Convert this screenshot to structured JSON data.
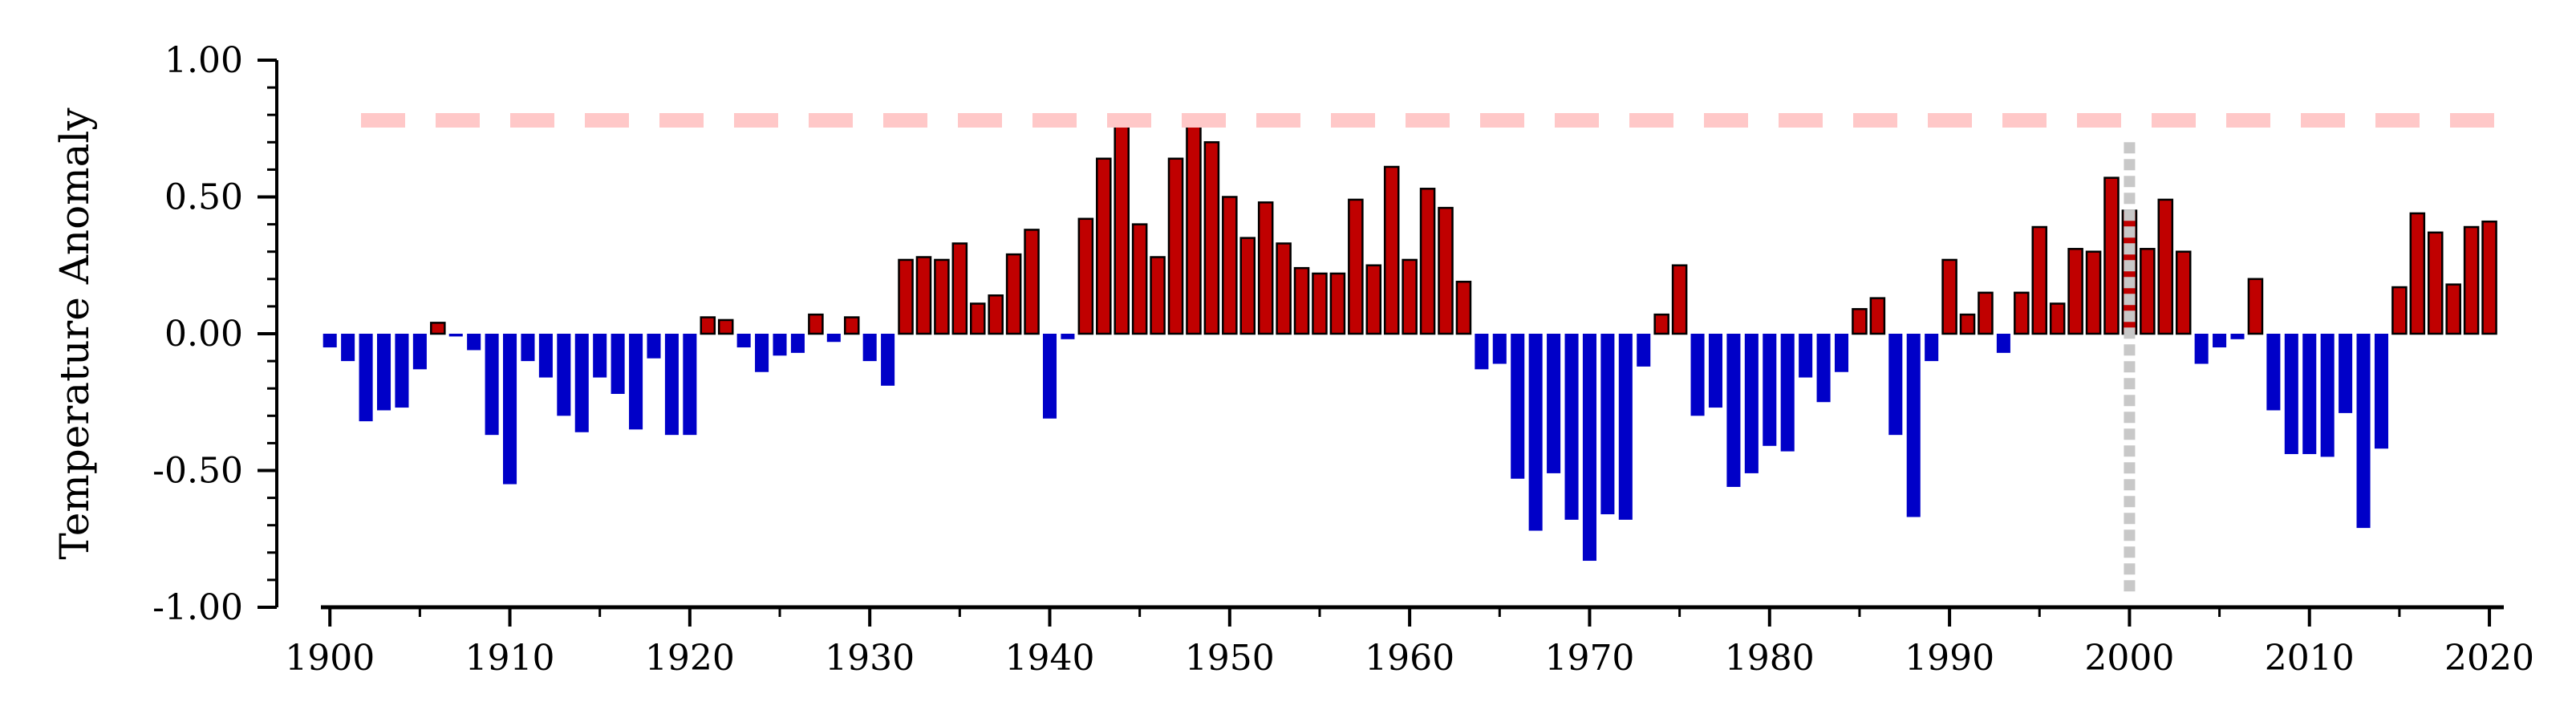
{
  "chart_data": {
    "type": "bar",
    "title": "",
    "xlabel": "",
    "ylabel": "Temperature Anomaly",
    "x": [
      1900,
      1901,
      1902,
      1903,
      1904,
      1905,
      1906,
      1907,
      1908,
      1909,
      1910,
      1911,
      1912,
      1913,
      1914,
      1915,
      1916,
      1917,
      1918,
      1919,
      1920,
      1921,
      1922,
      1923,
      1924,
      1925,
      1926,
      1927,
      1928,
      1929,
      1930,
      1931,
      1932,
      1933,
      1934,
      1935,
      1936,
      1937,
      1938,
      1939,
      1940,
      1941,
      1942,
      1943,
      1944,
      1945,
      1946,
      1947,
      1948,
      1949,
      1950,
      1951,
      1952,
      1953,
      1954,
      1955,
      1956,
      1957,
      1958,
      1959,
      1960,
      1961,
      1962,
      1963,
      1964,
      1965,
      1966,
      1967,
      1968,
      1969,
      1970,
      1971,
      1972,
      1973,
      1974,
      1975,
      1976,
      1977,
      1978,
      1979,
      1980,
      1981,
      1982,
      1983,
      1984,
      1985,
      1986,
      1987,
      1988,
      1989,
      1990,
      1991,
      1992,
      1993,
      1994,
      1995,
      1996,
      1997,
      1998,
      1999,
      2000,
      2001,
      2002,
      2003,
      2004,
      2005,
      2006,
      2007,
      2008,
      2009,
      2010,
      2011,
      2012,
      2013,
      2014,
      2015,
      2016,
      2017,
      2018,
      2019,
      2020
    ],
    "values": [
      -0.05,
      -0.1,
      -0.32,
      -0.28,
      -0.27,
      -0.13,
      0.04,
      -0.01,
      -0.06,
      -0.37,
      -0.55,
      -0.1,
      -0.16,
      -0.3,
      -0.36,
      -0.16,
      -0.22,
      -0.35,
      -0.09,
      -0.37,
      -0.37,
      0.06,
      0.05,
      -0.05,
      -0.14,
      -0.08,
      -0.07,
      0.07,
      -0.03,
      0.06,
      -0.1,
      -0.19,
      0.27,
      0.28,
      0.27,
      0.33,
      0.11,
      0.14,
      0.29,
      0.38,
      -0.31,
      -0.02,
      0.42,
      0.64,
      0.76,
      0.4,
      0.28,
      0.64,
      0.78,
      0.7,
      0.5,
      0.35,
      0.48,
      0.33,
      0.24,
      0.22,
      0.22,
      0.49,
      0.25,
      0.61,
      0.27,
      0.53,
      0.46,
      0.19,
      -0.13,
      -0.11,
      -0.53,
      -0.72,
      -0.51,
      -0.68,
      -0.83,
      -0.66,
      -0.68,
      -0.12,
      0.07,
      0.25,
      -0.3,
      -0.27,
      -0.56,
      -0.51,
      -0.41,
      -0.43,
      -0.16,
      -0.25,
      -0.14,
      0.09,
      0.13,
      -0.37,
      -0.67,
      -0.1,
      0.27,
      0.07,
      0.15,
      -0.07,
      0.15,
      0.39,
      0.11,
      0.31,
      0.3,
      0.57,
      0.45,
      0.31,
      0.49,
      0.3,
      -0.11,
      -0.05,
      -0.02,
      0.2,
      -0.28,
      -0.44,
      -0.44,
      -0.45,
      -0.29,
      -0.71,
      -0.42,
      0.17,
      0.44,
      0.37,
      0.18,
      0.39,
      0.41
    ],
    "positive_color": "#c00000",
    "negative_color": "#0000c8",
    "ylim": [
      -1.0,
      1.0
    ],
    "yticks": [
      "1.00",
      "0.50",
      "0.00",
      "-0.50",
      "-1.00"
    ],
    "ytick_values": [
      1.0,
      0.5,
      0.0,
      -0.5,
      -1.0
    ],
    "xlim": [
      1899.5,
      2020.8
    ],
    "xticks": [
      "1900",
      "1910",
      "1920",
      "1930",
      "1940",
      "1950",
      "1960",
      "1970",
      "1980",
      "1990",
      "2000",
      "2010",
      "2020"
    ],
    "xtick_values": [
      1900,
      1910,
      1920,
      1930,
      1940,
      1950,
      1960,
      1970,
      1980,
      1990,
      2000,
      2010,
      2020
    ],
    "reference_line": {
      "y": 0.78,
      "style": "dashed",
      "color": "#ffc8c8"
    },
    "vertical_marker": {
      "x": 2000,
      "style": "dotted",
      "color": "#c8c8c8"
    },
    "grid": false,
    "legend": "none"
  }
}
